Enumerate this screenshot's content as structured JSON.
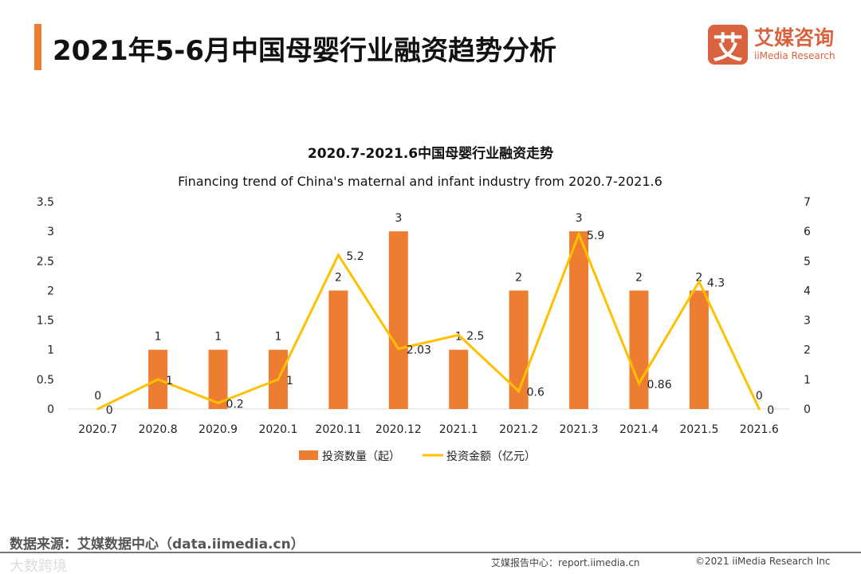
{
  "header": {
    "title": "2021年5-6月中国母婴行业融资趋势分析",
    "logo_mark": "艾",
    "logo_cn": "艾媒咨询",
    "logo_en": "iiMedia Research"
  },
  "footer": {
    "source": "数据来源：艾媒数据中心（data.iimedia.cn）",
    "watermark": "大数跨境",
    "report": "艾媒报告中心：report.iimedia.cn",
    "copyright": "©2021  iiMedia Research  Inc"
  },
  "colors": {
    "bar": "#ED7D31",
    "line": "#FFC000"
  },
  "chart_data": {
    "type": "bar+line",
    "title": "2020.7-2021.6中国母婴行业融资走势",
    "subtitle": "Financing trend of China's maternal and infant industry from 2020.7-2021.6",
    "categories": [
      "2020.7",
      "2020.8",
      "2020.9",
      "2020.1",
      "2020.11",
      "2020.12",
      "2021.1",
      "2021.2",
      "2021.3",
      "2021.4",
      "2021.5",
      "2021.6"
    ],
    "series": [
      {
        "name": "投资数量（起）",
        "type": "bar",
        "axis": "left",
        "values": [
          0,
          1,
          1,
          1,
          2,
          3,
          1,
          2,
          3,
          2,
          2,
          0
        ]
      },
      {
        "name": "投资金额（亿元）",
        "type": "line",
        "axis": "right",
        "values": [
          0,
          1,
          0.2,
          1,
          5.2,
          2.03,
          2.5,
          0.6,
          5.9,
          0.86,
          4.3,
          0
        ]
      }
    ],
    "ylim_left": [
      0,
      3.5
    ],
    "yticks_left": [
      "0",
      "0.5",
      "1",
      "1.5",
      "2",
      "2.5",
      "3",
      "3.5"
    ],
    "ylim_right": [
      0,
      7
    ],
    "yticks_right": [
      "0",
      "1",
      "2",
      "3",
      "4",
      "5",
      "6",
      "7"
    ],
    "legend": "bottom-center",
    "grid": false
  }
}
